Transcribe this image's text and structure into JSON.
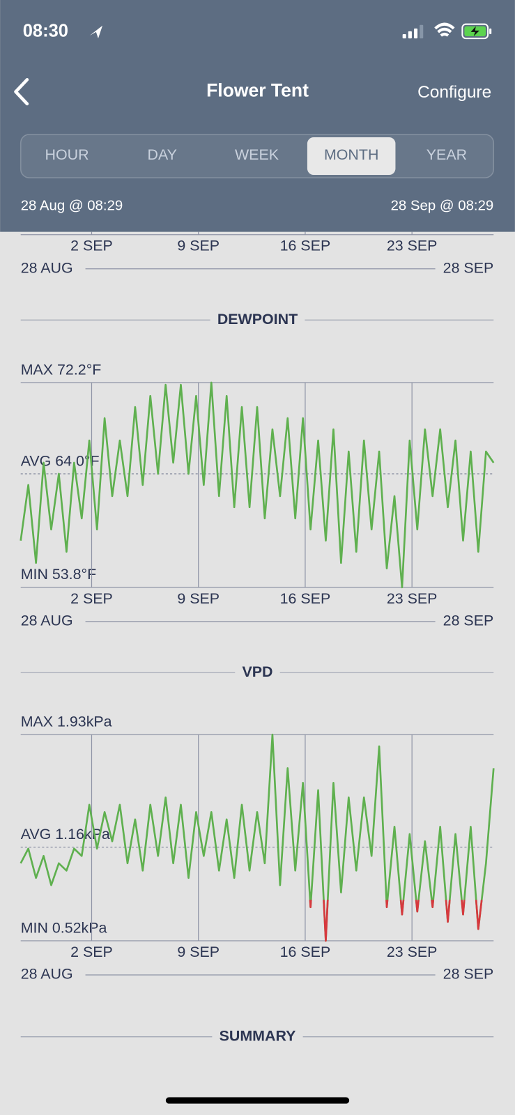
{
  "status_bar": {
    "time": "08:30"
  },
  "nav": {
    "title": "Flower Tent",
    "action": "Configure"
  },
  "segments": {
    "options": [
      "HOUR",
      "DAY",
      "WEEK",
      "MONTH",
      "YEAR"
    ],
    "selected": 3
  },
  "range": {
    "start": "28 Aug @ 08:29",
    "end": "28 Sep @ 08:29"
  },
  "chart_data": [
    {
      "type": "line",
      "xlim": [
        0,
        31
      ],
      "xticks": [
        {
          "value": 4.65,
          "label": "2 SEP"
        },
        {
          "value": 11.65,
          "label": "9 SEP"
        },
        {
          "value": 18.65,
          "label": "16 SEP"
        },
        {
          "value": 25.65,
          "label": "23 SEP"
        }
      ],
      "range_labels": [
        "28 AUG",
        "28 SEP"
      ]
    },
    {
      "type": "line",
      "title": "DEWPOINT",
      "color": "#5fb04f",
      "xlim": [
        0,
        31
      ],
      "ylim": [
        53.8,
        72.2
      ],
      "yticks": [
        {
          "value": 53.8,
          "label": "MIN 53.8°F"
        },
        {
          "value": 64.0,
          "label": "AVG 64.0°F"
        },
        {
          "value": 72.2,
          "label": "MAX 72.2°F"
        }
      ],
      "xticks": [
        {
          "value": 4.65,
          "label": "2 SEP"
        },
        {
          "value": 11.65,
          "label": "9 SEP"
        },
        {
          "value": 18.65,
          "label": "16 SEP"
        },
        {
          "value": 25.65,
          "label": "23 SEP"
        }
      ],
      "range_labels": [
        "28 AUG",
        "28 SEP"
      ],
      "x": [
        0,
        0.5,
        1,
        1.5,
        2,
        2.5,
        3,
        3.5,
        4,
        4.5,
        5,
        5.5,
        6,
        6.5,
        7,
        7.5,
        8,
        8.5,
        9,
        9.5,
        10,
        10.5,
        11,
        11.5,
        12,
        12.5,
        13,
        13.5,
        14,
        14.5,
        15,
        15.5,
        16,
        16.5,
        17,
        17.5,
        18,
        18.5,
        19,
        19.5,
        20,
        20.5,
        21,
        21.5,
        22,
        22.5,
        23,
        23.5,
        24,
        24.5,
        25,
        25.5,
        26,
        26.5,
        27,
        27.5,
        28,
        28.5,
        29,
        29.5,
        30,
        30.5,
        31
      ],
      "values": [
        58,
        63,
        56,
        65,
        59,
        64,
        57,
        65,
        60,
        67,
        59,
        69,
        62,
        67,
        62,
        70,
        63,
        71,
        64,
        72,
        65,
        72,
        64,
        71,
        63,
        72.2,
        62,
        71,
        61,
        70,
        61,
        70,
        60,
        68,
        62,
        69,
        60,
        69,
        59,
        67,
        58,
        68,
        56,
        66,
        57,
        67,
        59,
        66,
        55.5,
        62,
        53.8,
        67,
        59,
        68,
        62,
        68,
        61,
        67,
        58,
        66,
        57,
        66,
        65
      ]
    },
    {
      "type": "line",
      "title": "VPD",
      "color": "#5fb04f",
      "low_color": "#d7383e",
      "low_threshold": 0.8,
      "xlim": [
        0,
        31
      ],
      "ylim": [
        0.52,
        1.93
      ],
      "yticks": [
        {
          "value": 0.52,
          "label": "MIN 0.52kPa"
        },
        {
          "value": 1.16,
          "label": "AVG 1.16kPa"
        },
        {
          "value": 1.93,
          "label": "MAX 1.93kPa"
        }
      ],
      "xticks": [
        {
          "value": 4.65,
          "label": "2 SEP"
        },
        {
          "value": 11.65,
          "label": "9 SEP"
        },
        {
          "value": 18.65,
          "label": "16 SEP"
        },
        {
          "value": 25.65,
          "label": "23 SEP"
        }
      ],
      "range_labels": [
        "28 AUG",
        "28 SEP"
      ],
      "x": [
        0,
        0.5,
        1,
        1.5,
        2,
        2.5,
        3,
        3.5,
        4,
        4.5,
        5,
        5.5,
        6,
        6.5,
        7,
        7.5,
        8,
        8.5,
        9,
        9.5,
        10,
        10.5,
        11,
        11.5,
        12,
        12.5,
        13,
        13.5,
        14,
        14.5,
        15,
        15.5,
        16,
        16.5,
        17,
        17.5,
        18,
        18.5,
        19,
        19.5,
        20,
        20.5,
        21,
        21.5,
        22,
        22.5,
        23,
        23.5,
        24,
        24.5,
        25,
        25.5,
        26,
        26.5,
        27,
        27.5,
        28,
        28.5,
        29,
        29.5,
        30,
        30.5,
        31
      ],
      "values": [
        1.05,
        1.15,
        0.95,
        1.1,
        0.9,
        1.05,
        1.0,
        1.15,
        1.1,
        1.45,
        1.15,
        1.4,
        1.2,
        1.45,
        1.05,
        1.35,
        1.0,
        1.45,
        1.1,
        1.5,
        1.05,
        1.45,
        0.95,
        1.4,
        1.1,
        1.4,
        1.0,
        1.35,
        0.95,
        1.45,
        1.0,
        1.4,
        1.05,
        1.93,
        0.9,
        1.7,
        1.0,
        1.6,
        0.75,
        1.55,
        0.52,
        1.6,
        0.85,
        1.5,
        1.0,
        1.5,
        1.1,
        1.85,
        0.75,
        1.3,
        0.7,
        1.25,
        0.72,
        1.2,
        0.75,
        1.3,
        0.65,
        1.25,
        0.7,
        1.3,
        0.6,
        1.05,
        1.7
      ]
    }
  ],
  "summary": {
    "title": "SUMMARY"
  }
}
